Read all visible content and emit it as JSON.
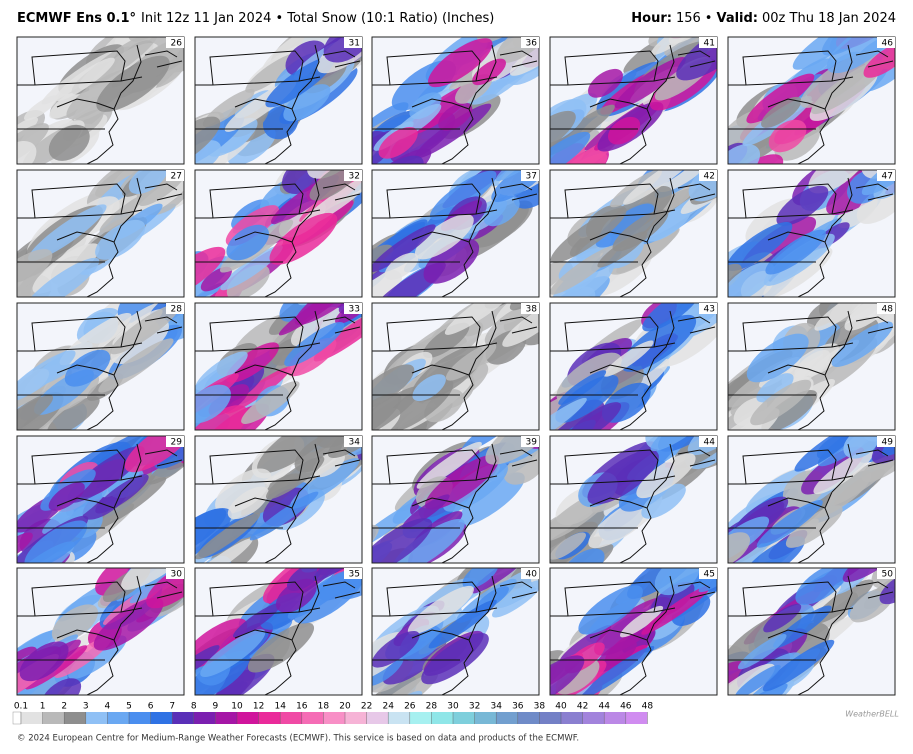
{
  "header": {
    "model": "ECMWF Ens 0.1°",
    "run": "Init 12z 11 Jan 2024 • Total Snow (10:1 Ratio) (Inches)",
    "hour_label": "Hour:",
    "hour": "156",
    "separator": "•",
    "valid_label": "Valid:",
    "valid": "00z Thu 18 Jan 2024"
  },
  "panels": [
    [
      26,
      31,
      36,
      41,
      46
    ],
    [
      27,
      32,
      37,
      42,
      47
    ],
    [
      28,
      33,
      38,
      43,
      48
    ],
    [
      29,
      34,
      39,
      44,
      49
    ],
    [
      30,
      35,
      40,
      45,
      50
    ]
  ],
  "colorbar": {
    "ticks": [
      0.1,
      1,
      2,
      3,
      4,
      5,
      6,
      7,
      8,
      9,
      10,
      12,
      14,
      16,
      18,
      20,
      22,
      24,
      26,
      28,
      30,
      32,
      34,
      36,
      38,
      40,
      42,
      44,
      46,
      48
    ],
    "colors": [
      "#e2e2e2",
      "#b9b9b9",
      "#8e8e8e",
      "#8fc0f5",
      "#6aa8f2",
      "#4a8eef",
      "#2f72e4",
      "#5a2fb8",
      "#7b1fb0",
      "#a516a6",
      "#d0149c",
      "#ea2a9a",
      "#f04aa5",
      "#f56cb5",
      "#f88fc6",
      "#f6b3d6",
      "#e7c8e8",
      "#c9e3f2",
      "#a6f0f0",
      "#8fe6e8",
      "#7ecfdc",
      "#78b8d6",
      "#729fcf",
      "#6f8bc8",
      "#7380c6",
      "#8a7fd0",
      "#a283dc",
      "#bb88e6",
      "#d08cf0"
    ]
  },
  "footer": "© 2024 European Centre for Medium-Range Weather Forecasts (ECMWF). This service is based on data and products of the ECMWF.",
  "logo": "WeatherBELL"
}
